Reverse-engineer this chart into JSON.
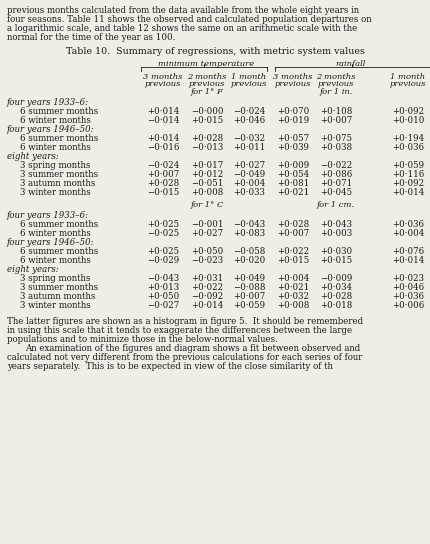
{
  "bg_color": "#f0ede4",
  "text_color": "#1a1a1a",
  "figsize": [
    4.31,
    5.44
  ],
  "dpi": 100,
  "title": "Table 10.  Summary of regressions, with metric system values",
  "header_group1": "minimum temperature",
  "header_group2": "rainfall",
  "subheader_F": "for 1° F",
  "subheader_in": "for 1 in.",
  "subheader_C": "for 1° C",
  "subheader_cm": "for 1 cm.",
  "col_h1": [
    "3 months",
    "2 months",
    "1 month",
    "3 months",
    "2 months",
    "1 month"
  ],
  "col_h2": [
    "previous",
    "previous",
    "previous",
    "previous",
    "previous",
    "previous"
  ],
  "para_lines": [
    "previous months calculated from the data available from the whole eight years in",
    "four seasons. Table 11 shows the observed and calculated population departures on",
    "a logarithmic scale, and table 12 shows the same on an arithmetic scale with the",
    "normal for the time of the year as 100."
  ],
  "sections": [
    {
      "label": "four years 1933–6:",
      "rows": [
        {
          "name": "6 summer months",
          "vals": [
            "+0·014",
            "−0·000",
            "−0·024",
            "+0·070",
            "+0·108",
            "+0·092"
          ]
        },
        {
          "name": "6 winter months",
          "vals": [
            "−0·014",
            "+0·015",
            "+0·046",
            "+0·019",
            "+0·007",
            "+0·010"
          ]
        }
      ]
    },
    {
      "label": "four years 1946–50:",
      "rows": [
        {
          "name": "6 summer months",
          "vals": [
            "+0·014",
            "+0·028",
            "−0·032",
            "+0·057",
            "+0·075",
            "+0·194"
          ]
        },
        {
          "name": "6 winter months",
          "vals": [
            "−0·016",
            "−0·013",
            "+0·011",
            "+0·039",
            "+0·038",
            "+0·036"
          ]
        }
      ]
    },
    {
      "label": "eight years:",
      "rows": [
        {
          "name": "3 spring months",
          "vals": [
            "−0·024",
            "+0·017",
            "+0·027",
            "+0·009",
            "−0·022",
            "+0·059"
          ]
        },
        {
          "name": "3 summer months",
          "vals": [
            "+0·007",
            "+0·012",
            "−0·049",
            "+0·054",
            "+0·086",
            "+0·116"
          ]
        },
        {
          "name": "3 autumn months",
          "vals": [
            "+0·028",
            "−0·051",
            "+0·004",
            "+0·081",
            "+0·071",
            "+0·092"
          ]
        },
        {
          "name": "3 winter months",
          "vals": [
            "−0·015",
            "+0·008",
            "+0·033",
            "+0·021",
            "+0·045",
            "+0·014"
          ]
        }
      ]
    }
  ],
  "sections2": [
    {
      "label": "four years 1933–6:",
      "rows": [
        {
          "name": "6 summer months",
          "vals": [
            "+0·025",
            "−0·001",
            "−0·043",
            "+0·028",
            "+0·043",
            "+0·036"
          ]
        },
        {
          "name": "6 winter months",
          "vals": [
            "−0·025",
            "+0·027",
            "+0·083",
            "+0·007",
            "+0·003",
            "+0·004"
          ]
        }
      ]
    },
    {
      "label": "four years 1946–50:",
      "rows": [
        {
          "name": "6 summer months",
          "vals": [
            "+0·025",
            "+0·050",
            "−0·058",
            "+0·022",
            "+0·030",
            "+0·076"
          ]
        },
        {
          "name": "6 winter months",
          "vals": [
            "−0·029",
            "−0·023",
            "+0·020",
            "+0·015",
            "+0·015",
            "+0·014"
          ]
        }
      ]
    },
    {
      "label": "eight years:",
      "rows": [
        {
          "name": "3 spring months",
          "vals": [
            "−0·043",
            "+0·031",
            "+0·049",
            "+0·004",
            "−0·009",
            "+0·023"
          ]
        },
        {
          "name": "3 summer months",
          "vals": [
            "+0·013",
            "+0·022",
            "−0·088",
            "+0·021",
            "+0·034",
            "+0·046"
          ]
        },
        {
          "name": "3 autumn months",
          "vals": [
            "+0·050",
            "−0·092",
            "+0·007",
            "+0·032",
            "+0·028",
            "+0·036"
          ]
        },
        {
          "name": "3 winter months",
          "vals": [
            "−0·027",
            "+0·014",
            "+0·059",
            "+0·008",
            "+0·018",
            "+0·006"
          ]
        }
      ]
    }
  ],
  "footer_lines": [
    "The latter figures are shown as a histogram in figure 5.  It should be remembered",
    "in using this scale that it tends to exaggerate the differences between the large",
    "populations and to minimize those in the below-normal values.",
    "An examination of the figures and diagram shows a fit between observed and",
    "calculated not very different from the previous calculations for each series of four",
    "years separately.  This is to be expected in view of the close similarity of th"
  ],
  "footer_indent": [
    false,
    false,
    false,
    true,
    false,
    false
  ]
}
